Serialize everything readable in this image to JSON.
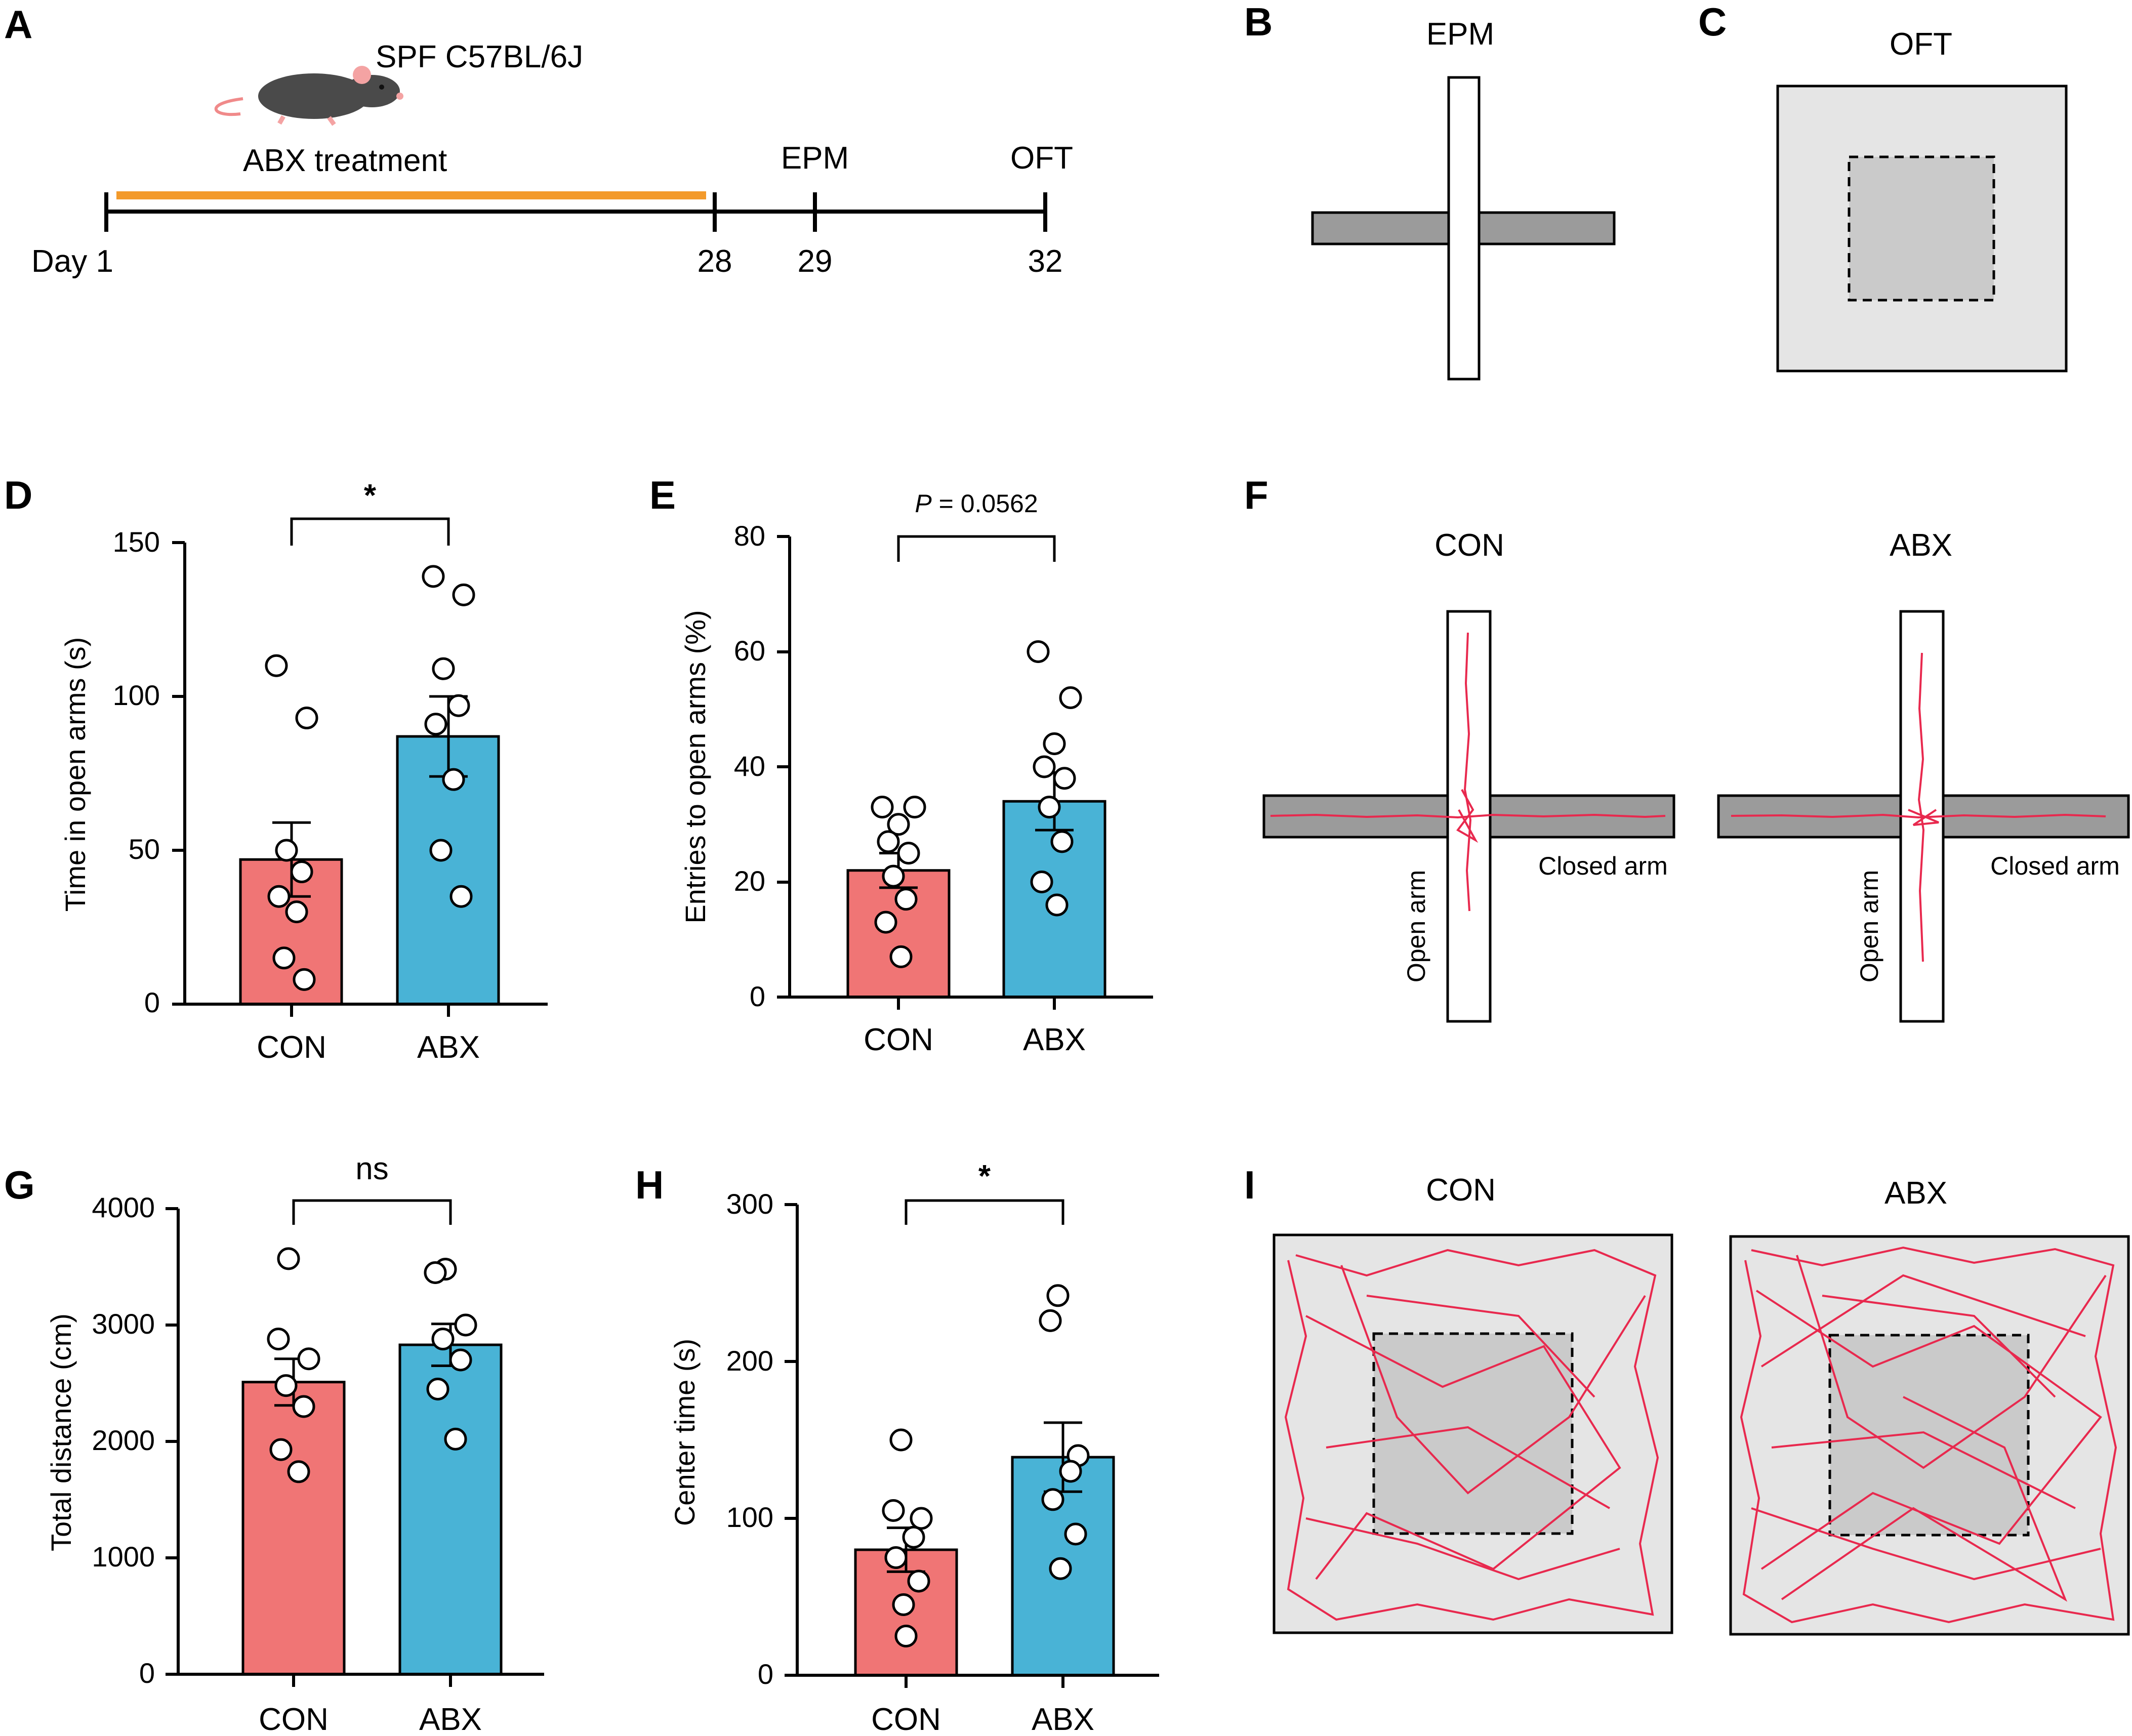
{
  "panel_labels": {
    "A": "A",
    "B": "B",
    "C": "C",
    "D": "D",
    "E": "E",
    "F": "F",
    "G": "G",
    "H": "H",
    "I": "I"
  },
  "colors": {
    "con": "#f07575",
    "abx": "#49b3d6",
    "orange": "#f39a2b",
    "track": "#e8294e",
    "arm_gray": "#9b9b9b",
    "arena": "#e5e5e5",
    "center": "#cacaca"
  },
  "timeline": {
    "strain": "SPF C57BL/6J",
    "treatment": "ABX treatment",
    "events": [
      "EPM",
      "OFT"
    ],
    "days": [
      "Day 1",
      "28",
      "29",
      "32"
    ],
    "icon": "mouse-icon"
  },
  "panel_b": {
    "title": "EPM"
  },
  "panel_c": {
    "title": "OFT"
  },
  "panel_f": {
    "groups": [
      "CON",
      "ABX"
    ],
    "closed_label": "Closed arm",
    "open_label": "Open arm"
  },
  "panel_i": {
    "groups": [
      "CON",
      "ABX"
    ]
  },
  "chart_data": [
    {
      "id": "D",
      "type": "bar",
      "categories": [
        "CON",
        "ABX"
      ],
      "values": [
        47,
        87
      ],
      "sem": [
        12,
        13
      ],
      "points": [
        [
          110,
          93,
          50,
          43,
          35,
          30,
          15,
          8
        ],
        [
          139,
          133,
          109,
          97,
          91,
          73,
          50,
          35
        ]
      ],
      "ylabel": "Time in open arms (s)",
      "ylim": [
        0,
        150
      ],
      "yticks": [
        "0",
        "50",
        "100",
        "150"
      ],
      "significance": "*"
    },
    {
      "id": "E",
      "type": "bar",
      "categories": [
        "CON",
        "ABX"
      ],
      "values": [
        22,
        34
      ],
      "sem": [
        3,
        5
      ],
      "points": [
        [
          33,
          33,
          30,
          27,
          25,
          21,
          17,
          13,
          7
        ],
        [
          60,
          52,
          44,
          40,
          38,
          33,
          27,
          20,
          16
        ]
      ],
      "ylabel": "Entries to open arms (%)",
      "ylim": [
        0,
        80
      ],
      "yticks": [
        "0",
        "20",
        "40",
        "60",
        "80"
      ],
      "significance_italic": "P",
      "significance": " = 0.0562"
    },
    {
      "id": "G",
      "type": "bar",
      "categories": [
        "CON",
        "ABX"
      ],
      "values": [
        2510,
        2830
      ],
      "sem": [
        200,
        180
      ],
      "points": [
        [
          3570,
          2880,
          2710,
          2480,
          2300,
          1930,
          1740
        ],
        [
          3480,
          3450,
          3000,
          2880,
          2700,
          2450,
          2020
        ]
      ],
      "ylabel": "Total distance (cm)",
      "ylim": [
        0,
        4000
      ],
      "yticks": [
        "0",
        "1000",
        "2000",
        "3000",
        "4000"
      ],
      "significance": "ns"
    },
    {
      "id": "H",
      "type": "bar",
      "categories": [
        "CON",
        "ABX"
      ],
      "values": [
        80,
        139
      ],
      "sem": [
        14,
        22
      ],
      "points": [
        [
          150,
          105,
          100,
          88,
          75,
          60,
          45,
          25
        ],
        [
          242,
          226,
          140,
          130,
          112,
          90,
          68
        ]
      ],
      "ylabel": "Center time (s)",
      "ylim": [
        0,
        300
      ],
      "yticks": [
        "0",
        "100",
        "200",
        "300"
      ],
      "significance": "*"
    }
  ]
}
